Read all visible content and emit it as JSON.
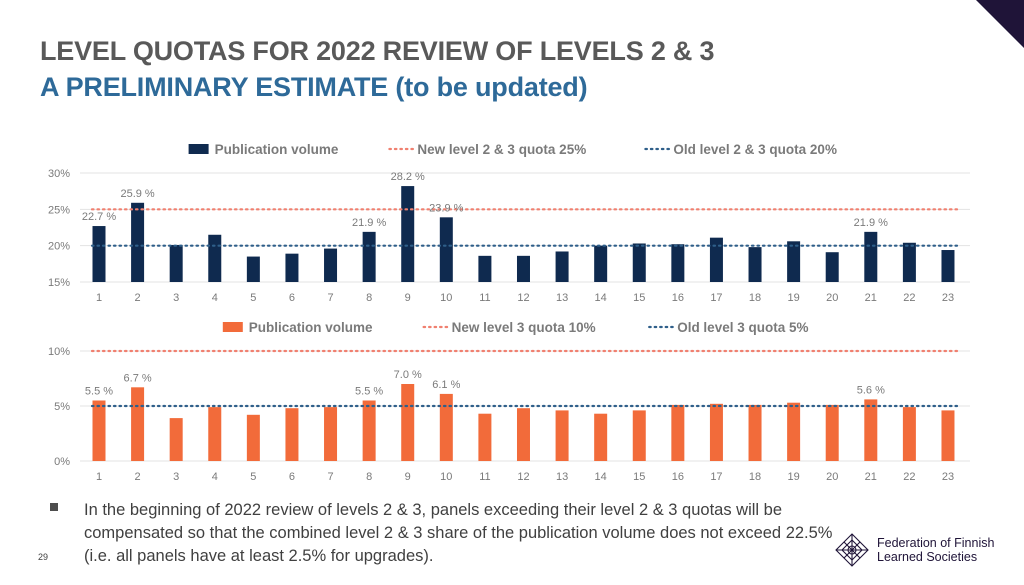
{
  "slide": {
    "title_line1": "LEVEL QUOTAS FOR 2022 REVIEW OF LEVELS 2 & 3",
    "title_line2": "A PRELIMINARY ESTIMATE (to be updated)",
    "bullet": "In the beginning of 2022 review of levels 2 & 3, panels exceeding their level 2 & 3 quotas will be compensated so that the combined level 2 & 3 share of the publication volume does not exceed 22.5% (i.e. all panels have at least 2.5% for upgrades).",
    "page_number": "29",
    "logo_line1": "Federation of Finnish",
    "logo_line2": "Learned Societies",
    "logo_icon": "network-knot-icon"
  },
  "chart_data": [
    {
      "type": "bar",
      "categories": [
        "1",
        "2",
        "3",
        "4",
        "5",
        "6",
        "7",
        "8",
        "9",
        "10",
        "11",
        "12",
        "13",
        "14",
        "15",
        "16",
        "17",
        "18",
        "19",
        "20",
        "21",
        "22",
        "23"
      ],
      "series": [
        {
          "name": "Publication volume",
          "color": "#0f2a4f",
          "values": [
            22.7,
            25.9,
            20.1,
            21.5,
            18.5,
            18.9,
            19.6,
            21.9,
            28.2,
            23.9,
            18.6,
            18.6,
            19.2,
            20.0,
            20.3,
            20.2,
            21.1,
            19.8,
            20.6,
            19.1,
            21.9,
            20.4,
            19.4
          ],
          "data_labels": [
            {
              "index": 0,
              "text": "22.7 %"
            },
            {
              "index": 1,
              "text": "25.9 %"
            },
            {
              "index": 7,
              "text": "21.9 %"
            },
            {
              "index": 8,
              "text": "28.2 %"
            },
            {
              "index": 9,
              "text": "23.9 %"
            },
            {
              "index": 20,
              "text": "21.9 %"
            }
          ]
        }
      ],
      "reference_lines": [
        {
          "name": "New level 2 & 3 quota 25%",
          "value": 25,
          "color": "#f08070",
          "style": "dotted"
        },
        {
          "name": "Old level 2 & 3 quota 20%",
          "value": 20,
          "color": "#2f5f8a",
          "style": "dotted"
        }
      ],
      "ylim": [
        15,
        30
      ],
      "yticks": [
        "15%",
        "20%",
        "25%",
        "30%"
      ],
      "ytick_values": [
        15,
        20,
        25,
        30
      ],
      "legend": "top",
      "grid": true
    },
    {
      "type": "bar",
      "categories": [
        "1",
        "2",
        "3",
        "4",
        "5",
        "6",
        "7",
        "8",
        "9",
        "10",
        "11",
        "12",
        "13",
        "14",
        "15",
        "16",
        "17",
        "18",
        "19",
        "20",
        "21",
        "22",
        "23"
      ],
      "series": [
        {
          "name": "Publication volume",
          "color": "#f26b3a",
          "values": [
            5.5,
            6.7,
            3.9,
            4.9,
            4.2,
            4.8,
            4.9,
            5.5,
            7.0,
            6.1,
            4.3,
            4.8,
            4.6,
            4.3,
            4.6,
            5.1,
            5.2,
            5.1,
            5.3,
            5.1,
            5.6,
            4.9,
            4.6
          ],
          "data_labels": [
            {
              "index": 0,
              "text": "5.5 %"
            },
            {
              "index": 1,
              "text": "6.7 %"
            },
            {
              "index": 7,
              "text": "5.5 %"
            },
            {
              "index": 8,
              "text": "7.0 %"
            },
            {
              "index": 9,
              "text": "6.1 %"
            },
            {
              "index": 20,
              "text": "5.6 %"
            }
          ]
        }
      ],
      "reference_lines": [
        {
          "name": "New level 3 quota 10%",
          "value": 10,
          "color": "#f08070",
          "style": "dotted"
        },
        {
          "name": "Old level 3 quota 5%",
          "value": 5,
          "color": "#2f5f8a",
          "style": "dotted"
        }
      ],
      "ylim": [
        0,
        10
      ],
      "yticks": [
        "0%",
        "5%",
        "10%"
      ],
      "ytick_values": [
        0,
        5,
        10
      ],
      "legend": "top",
      "grid": true
    }
  ]
}
